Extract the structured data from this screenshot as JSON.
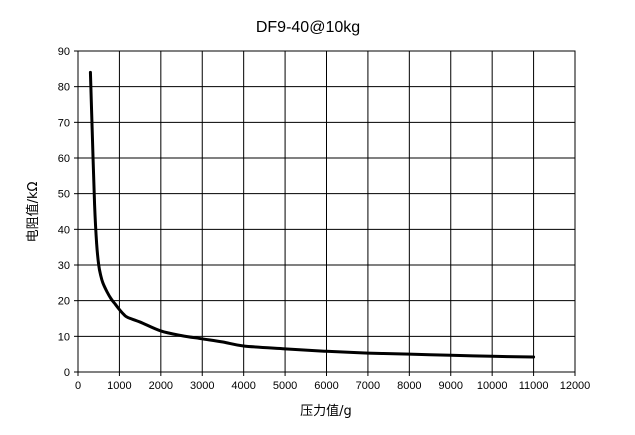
{
  "chart_data": {
    "type": "line",
    "title": "DF9-40@10kg",
    "xlabel": "压力值/g",
    "ylabel": "电阻值/kΩ",
    "xlim": [
      0,
      12000
    ],
    "ylim": [
      0,
      90
    ],
    "x_ticks": [
      0,
      1000,
      2000,
      3000,
      4000,
      5000,
      6000,
      7000,
      8000,
      9000,
      10000,
      11000,
      12000
    ],
    "y_ticks": [
      0,
      10,
      20,
      30,
      40,
      50,
      60,
      70,
      80,
      90
    ],
    "grid": true,
    "series": [
      {
        "color": "#000000",
        "x": [
          300,
          350,
          400,
          450,
          500,
          550,
          600,
          700,
          800,
          900,
          1000,
          1100,
          1200,
          1500,
          2000,
          2500,
          3000,
          3500,
          4000,
          5000,
          6000,
          7000,
          8000,
          9000,
          10000,
          11000
        ],
        "y": [
          84,
          65,
          47,
          36,
          30,
          27,
          25,
          22.5,
          20.5,
          19,
          17.5,
          16.2,
          15.3,
          14,
          11.5,
          10.2,
          9.3,
          8.4,
          7.3,
          6.5,
          5.8,
          5.3,
          5.0,
          4.7,
          4.4,
          4.2
        ]
      }
    ]
  }
}
